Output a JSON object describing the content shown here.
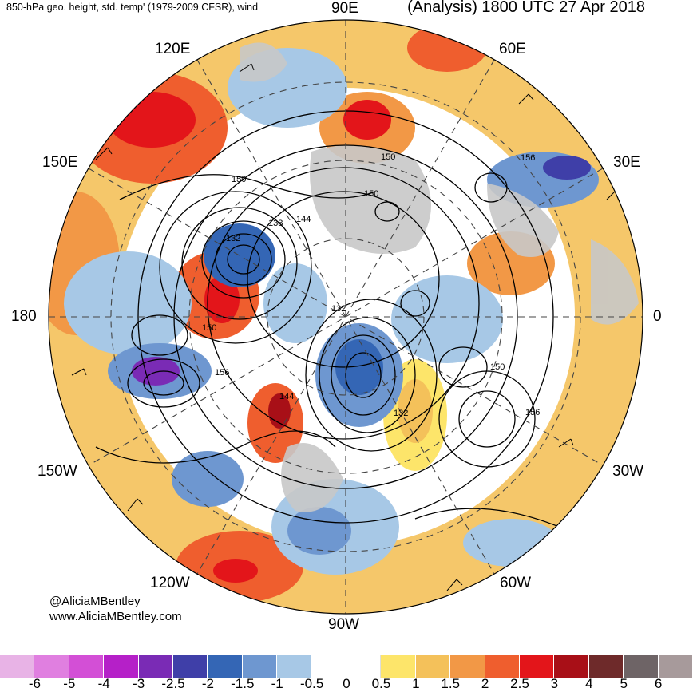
{
  "header": {
    "left_title": "850-hPa geo. height, std. temp' (1979-2009 CFSR), wind",
    "right_title": "(Analysis) 1800 UTC 27 Apr 2018"
  },
  "map_labels": {
    "lon_90E": "90E",
    "lon_60E": "60E",
    "lon_120E": "120E",
    "lon_150E": "150E",
    "lon_30E": "30E",
    "lon_180": "180",
    "lon_0": "0",
    "lon_150W": "150W",
    "lon_30W": "30W",
    "lon_120W": "120W",
    "lon_60W": "60W",
    "lon_90W": "90W"
  },
  "contour_labels": [
    "150",
    "138",
    "144",
    "132",
    "150",
    "150",
    "156",
    "132",
    "144",
    "132",
    "150",
    "156",
    "156",
    "150"
  ],
  "credits": {
    "twitter": "@AliciaMBentley",
    "website": "www.AliciaMBentley.com"
  },
  "colorbar": {
    "colors": [
      "#e8b3e6",
      "#e07fe0",
      "#d34fd6",
      "#b520c8",
      "#7a2bb5",
      "#3f3fa8",
      "#3466b5",
      "#6e97d0",
      "#a7c8e6",
      "#ffffff",
      "#ffffff",
      "#fde56a",
      "#f4c15a",
      "#f29846",
      "#ef5e2e",
      "#e3151a",
      "#a80f17",
      "#6e2a2a",
      "#6e6466",
      "#a79a9b"
    ],
    "ticks": [
      "-6",
      "-5",
      "-4",
      "-3",
      "-2.5",
      "-2",
      "-1.5",
      "-1",
      "-0.5",
      "0",
      "0.5",
      "1",
      "1.5",
      "2",
      "2.5",
      "3",
      "4",
      "5",
      "6"
    ]
  }
}
